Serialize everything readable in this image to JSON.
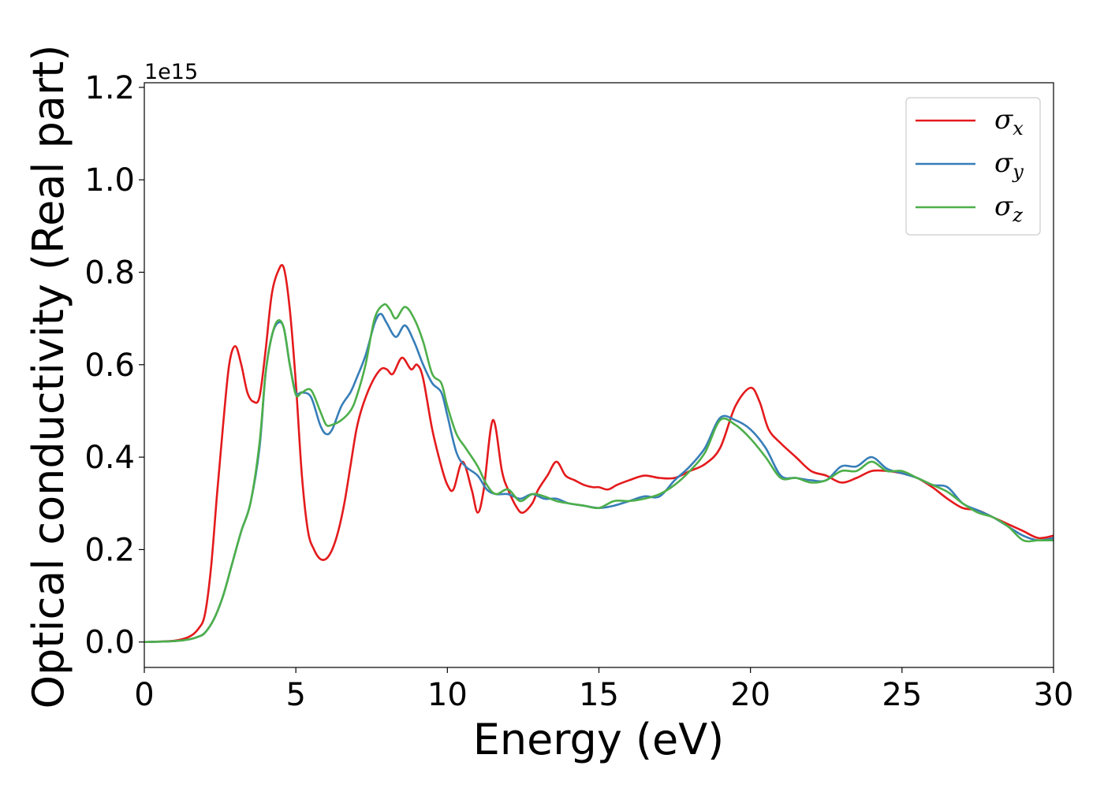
{
  "chart_data": {
    "type": "line",
    "xlabel": "Energy (eV)",
    "ylabel": "Optical conductivity (Real part)",
    "y_offset_label": "1e15",
    "xlim": [
      0,
      30
    ],
    "ylim": [
      -0.055,
      1.21
    ],
    "x_ticks": [
      0,
      5,
      10,
      15,
      20,
      25,
      30
    ],
    "x_tick_labels": [
      "0",
      "5",
      "10",
      "15",
      "20",
      "25",
      "30"
    ],
    "y_ticks": [
      0.0,
      0.2,
      0.4,
      0.6,
      0.8,
      1.0,
      1.2
    ],
    "y_tick_labels": [
      "0.0",
      "0.2",
      "0.4",
      "0.6",
      "0.8",
      "1.0",
      "1.2"
    ],
    "grid": false,
    "legend_position": "top-right",
    "series": [
      {
        "name": "σx",
        "symbol": "σ",
        "subscript": "x",
        "color": "#e41a1c",
        "x": [
          0,
          1,
          1.5,
          1.8,
          2.0,
          2.2,
          2.4,
          2.6,
          2.8,
          3.0,
          3.2,
          3.4,
          3.6,
          3.8,
          4.0,
          4.2,
          4.4,
          4.6,
          4.8,
          5.0,
          5.2,
          5.4,
          5.6,
          5.8,
          6.0,
          6.2,
          6.4,
          6.6,
          6.8,
          7.0,
          7.2,
          7.5,
          7.8,
          8.0,
          8.2,
          8.5,
          8.8,
          9.0,
          9.2,
          9.5,
          9.8,
          10.0,
          10.2,
          10.5,
          10.8,
          11.0,
          11.2,
          11.5,
          11.8,
          12.0,
          12.3,
          12.5,
          12.8,
          13.0,
          13.3,
          13.6,
          13.9,
          14.2,
          14.5,
          14.8,
          15.0,
          15.3,
          15.6,
          16.0,
          16.5,
          17.0,
          17.5,
          18.0,
          18.5,
          19.0,
          19.5,
          20.0,
          20.3,
          20.6,
          21.0,
          21.5,
          22.0,
          22.5,
          23.0,
          23.5,
          24.0,
          24.5,
          25.0,
          25.5,
          26.0,
          26.5,
          27.0,
          27.5,
          28.0,
          28.5,
          29.0,
          29.5,
          30.0
        ],
        "y": [
          0.0,
          0.003,
          0.012,
          0.03,
          0.06,
          0.16,
          0.32,
          0.47,
          0.6,
          0.64,
          0.6,
          0.54,
          0.52,
          0.53,
          0.63,
          0.75,
          0.8,
          0.81,
          0.72,
          0.56,
          0.36,
          0.24,
          0.2,
          0.18,
          0.18,
          0.2,
          0.24,
          0.3,
          0.38,
          0.46,
          0.51,
          0.56,
          0.59,
          0.59,
          0.58,
          0.615,
          0.59,
          0.6,
          0.57,
          0.46,
          0.38,
          0.34,
          0.33,
          0.39,
          0.33,
          0.28,
          0.33,
          0.48,
          0.37,
          0.33,
          0.29,
          0.28,
          0.3,
          0.33,
          0.36,
          0.39,
          0.36,
          0.35,
          0.34,
          0.335,
          0.335,
          0.33,
          0.34,
          0.35,
          0.36,
          0.355,
          0.355,
          0.37,
          0.385,
          0.42,
          0.51,
          0.55,
          0.52,
          0.46,
          0.43,
          0.4,
          0.37,
          0.36,
          0.345,
          0.355,
          0.37,
          0.37,
          0.365,
          0.355,
          0.335,
          0.31,
          0.29,
          0.285,
          0.27,
          0.255,
          0.24,
          0.225,
          0.23
        ]
      },
      {
        "name": "σy",
        "symbol": "σ",
        "subscript": "y",
        "color": "#377eb8",
        "x": [
          0,
          1,
          1.5,
          1.8,
          2.0,
          2.3,
          2.6,
          2.9,
          3.2,
          3.5,
          3.8,
          4.0,
          4.2,
          4.4,
          4.6,
          4.8,
          5.0,
          5.2,
          5.5,
          5.8,
          6.0,
          6.2,
          6.5,
          6.8,
          7.0,
          7.3,
          7.6,
          7.8,
          8.0,
          8.3,
          8.6,
          8.9,
          9.2,
          9.5,
          9.8,
          10.0,
          10.3,
          10.6,
          11.0,
          11.3,
          11.6,
          12.0,
          12.4,
          12.8,
          13.2,
          13.6,
          14.0,
          14.5,
          15.0,
          15.5,
          16.0,
          16.5,
          17.0,
          17.5,
          18.0,
          18.5,
          19.0,
          19.5,
          20.0,
          20.5,
          21.0,
          21.5,
          22.0,
          22.5,
          23.0,
          23.5,
          24.0,
          24.5,
          25.0,
          25.5,
          26.0,
          26.5,
          27.0,
          27.5,
          28.0,
          28.5,
          29.0,
          29.5,
          30.0
        ],
        "y": [
          0.0,
          0.002,
          0.006,
          0.012,
          0.02,
          0.05,
          0.1,
          0.17,
          0.24,
          0.3,
          0.42,
          0.58,
          0.66,
          0.69,
          0.68,
          0.6,
          0.54,
          0.54,
          0.53,
          0.47,
          0.45,
          0.46,
          0.51,
          0.54,
          0.57,
          0.62,
          0.69,
          0.71,
          0.69,
          0.66,
          0.685,
          0.65,
          0.6,
          0.56,
          0.54,
          0.49,
          0.41,
          0.38,
          0.36,
          0.33,
          0.32,
          0.32,
          0.31,
          0.32,
          0.31,
          0.31,
          0.3,
          0.295,
          0.29,
          0.295,
          0.305,
          0.315,
          0.315,
          0.35,
          0.38,
          0.42,
          0.485,
          0.48,
          0.46,
          0.42,
          0.36,
          0.355,
          0.35,
          0.35,
          0.38,
          0.38,
          0.4,
          0.375,
          0.365,
          0.355,
          0.34,
          0.335,
          0.3,
          0.285,
          0.27,
          0.25,
          0.23,
          0.22,
          0.225
        ]
      },
      {
        "name": "σz",
        "symbol": "σ",
        "subscript": "z",
        "color": "#4daf4a",
        "x": [
          0,
          1,
          1.5,
          1.8,
          2.0,
          2.3,
          2.6,
          2.9,
          3.2,
          3.5,
          3.8,
          4.0,
          4.2,
          4.4,
          4.6,
          4.8,
          5.0,
          5.2,
          5.5,
          5.8,
          6.0,
          6.2,
          6.5,
          6.8,
          7.0,
          7.3,
          7.6,
          7.9,
          8.1,
          8.3,
          8.6,
          8.9,
          9.2,
          9.5,
          9.8,
          10.0,
          10.3,
          10.6,
          11.0,
          11.3,
          11.6,
          12.0,
          12.4,
          12.8,
          13.2,
          13.6,
          14.0,
          14.5,
          15.0,
          15.5,
          16.0,
          16.5,
          17.0,
          17.5,
          18.0,
          18.5,
          19.0,
          19.5,
          20.0,
          20.5,
          21.0,
          21.5,
          22.0,
          22.5,
          23.0,
          23.5,
          24.0,
          24.5,
          25.0,
          25.5,
          26.0,
          26.5,
          27.0,
          27.5,
          28.0,
          28.5,
          29.0,
          29.5,
          30.0
        ],
        "y": [
          0.0,
          0.002,
          0.006,
          0.012,
          0.02,
          0.05,
          0.1,
          0.17,
          0.24,
          0.3,
          0.43,
          0.58,
          0.66,
          0.695,
          0.68,
          0.6,
          0.535,
          0.54,
          0.545,
          0.5,
          0.47,
          0.47,
          0.48,
          0.5,
          0.53,
          0.6,
          0.7,
          0.73,
          0.72,
          0.7,
          0.725,
          0.7,
          0.65,
          0.58,
          0.56,
          0.51,
          0.45,
          0.42,
          0.38,
          0.34,
          0.32,
          0.33,
          0.305,
          0.32,
          0.315,
          0.305,
          0.3,
          0.295,
          0.29,
          0.305,
          0.305,
          0.31,
          0.32,
          0.34,
          0.37,
          0.41,
          0.48,
          0.47,
          0.44,
          0.4,
          0.355,
          0.355,
          0.345,
          0.35,
          0.37,
          0.37,
          0.39,
          0.37,
          0.37,
          0.355,
          0.34,
          0.325,
          0.3,
          0.28,
          0.27,
          0.25,
          0.22,
          0.22,
          0.22
        ]
      }
    ]
  }
}
